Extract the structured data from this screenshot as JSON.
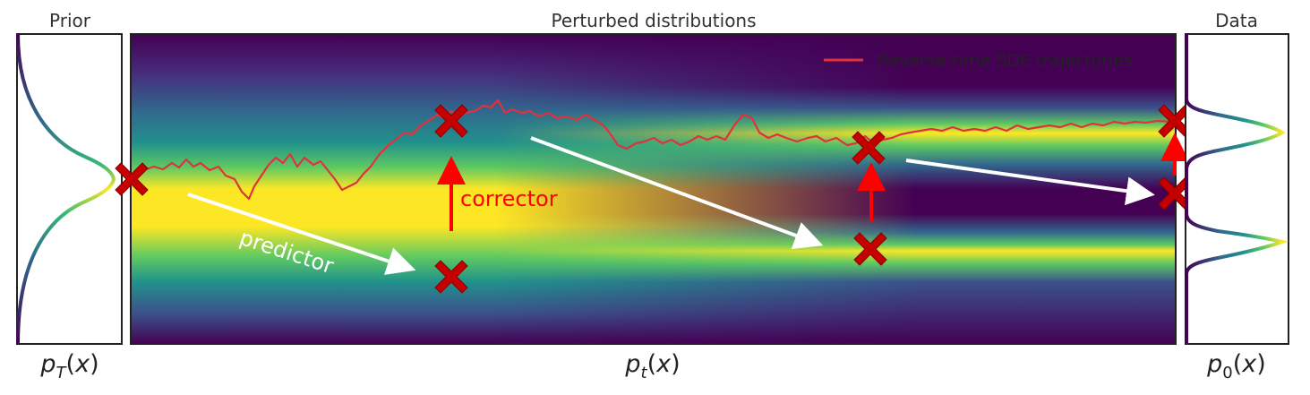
{
  "titles": {
    "prior": "Prior",
    "middle": "Perturbed distributions",
    "data": "Data"
  },
  "axis_labels": {
    "prior": "p_T(x)",
    "middle": "p_t(x)",
    "data": "p_0(x)"
  },
  "legend": {
    "label": "Reverse-time SDE trajectories",
    "color": "#e0323c"
  },
  "annotations": {
    "predictor": "predictor",
    "corrector": "corrector"
  },
  "colors": {
    "colormap": "viridis",
    "marker": "#c40000",
    "predictor_arrow": "#ffffff",
    "corrector_arrow": "#ff0000",
    "trajectory": "#e0323c"
  },
  "icons": {
    "marker": "x-mark-icon"
  }
}
